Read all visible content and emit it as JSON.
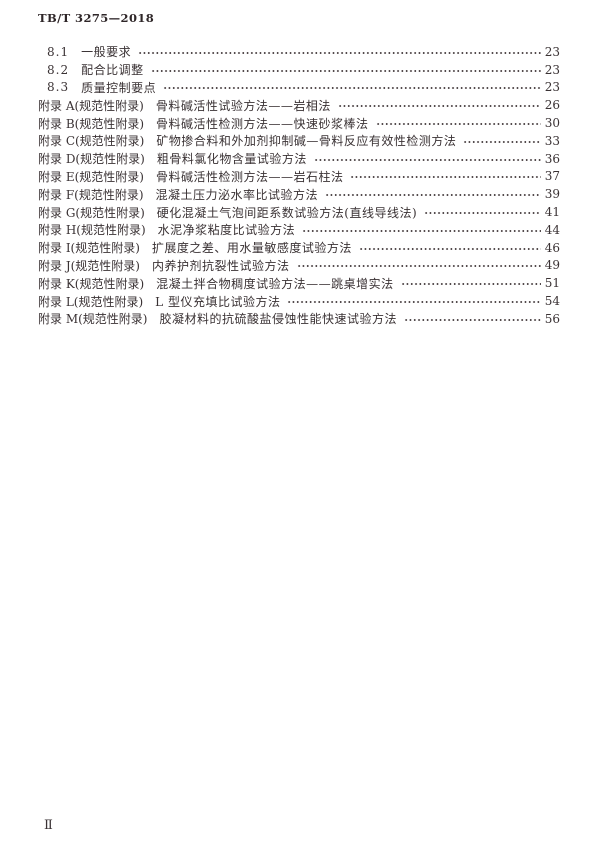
{
  "page": {
    "header": "TB/T 3275—2018",
    "footer_page_number": "Ⅱ",
    "text_color": "#3a3234",
    "background_color": "#ffffff"
  },
  "toc": {
    "entries": [
      {
        "label": "8.1",
        "title": "一般要求",
        "page": "23"
      },
      {
        "label": "8.2",
        "title": "配合比调整",
        "page": "23"
      },
      {
        "label": "8.3",
        "title": "质量控制要点",
        "page": "23"
      },
      {
        "label": "附录 A(规范性附录)",
        "title": "骨料碱活性试验方法——岩相法",
        "page": "26"
      },
      {
        "label": "附录 B(规范性附录)",
        "title": "骨料碱活性检测方法——快速砂浆棒法",
        "page": "30"
      },
      {
        "label": "附录 C(规范性附录)",
        "title": "矿物掺合料和外加剂抑制碱—骨料反应有效性检测方法",
        "page": "33"
      },
      {
        "label": "附录 D(规范性附录)",
        "title": "粗骨料氯化物含量试验方法",
        "page": "36"
      },
      {
        "label": "附录 E(规范性附录)",
        "title": "骨料碱活性检测方法——岩石柱法",
        "page": "37"
      },
      {
        "label": "附录 F(规范性附录)",
        "title": "混凝土压力泌水率比试验方法",
        "page": "39"
      },
      {
        "label": "附录 G(规范性附录)",
        "title": "硬化混凝土气泡间距系数试验方法(直线导线法)",
        "page": "41"
      },
      {
        "label": "附录 H(规范性附录)",
        "title": "水泥净浆粘度比试验方法",
        "page": "44"
      },
      {
        "label": "附录 I(规范性附录)",
        "title": "扩展度之差、用水量敏感度试验方法",
        "page": "46"
      },
      {
        "label": "附录 J(规范性附录)",
        "title": "内养护剂抗裂性试验方法",
        "page": "49"
      },
      {
        "label": "附录 K(规范性附录)",
        "title": "混凝土拌合物稠度试验方法——跳桌增实法",
        "page": "51"
      },
      {
        "label": "附录 L(规范性附录)",
        "title": "L 型仪充填比试验方法",
        "page": "54"
      },
      {
        "label": "附录 M(规范性附录)",
        "title": "胶凝材料的抗硫酸盐侵蚀性能快速试验方法",
        "page": "56"
      }
    ]
  }
}
